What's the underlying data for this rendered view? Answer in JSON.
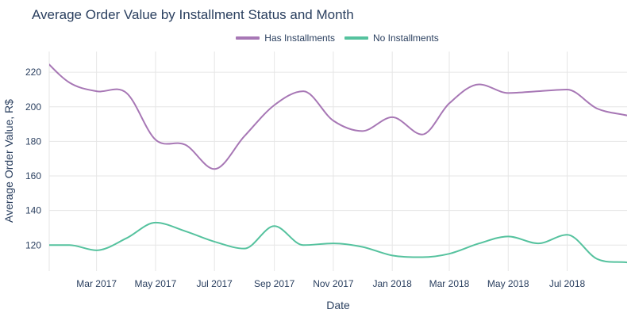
{
  "chart_data": {
    "type": "line",
    "title": "Average Order Value by Installment Status and Month",
    "xlabel": "Date",
    "ylabel": "Average Order Value, R$",
    "x": [
      "2017-01",
      "2017-02",
      "2017-03",
      "2017-04",
      "2017-05",
      "2017-06",
      "2017-07",
      "2017-08",
      "2017-09",
      "2017-10",
      "2017-11",
      "2017-12",
      "2018-01",
      "2018-02",
      "2018-03",
      "2018-04",
      "2018-05",
      "2018-06",
      "2018-07",
      "2018-08",
      "2018-09"
    ],
    "x_ticks": [
      {
        "date": "2017-03",
        "label": "Mar 2017"
      },
      {
        "date": "2017-05",
        "label": "May 2017"
      },
      {
        "date": "2017-07",
        "label": "Jul 2017"
      },
      {
        "date": "2017-09",
        "label": "Sep 2017"
      },
      {
        "date": "2017-11",
        "label": "Nov 2017"
      },
      {
        "date": "2018-01",
        "label": "Jan 2018"
      },
      {
        "date": "2018-03",
        "label": "Mar 2018"
      },
      {
        "date": "2018-05",
        "label": "May 2018"
      },
      {
        "date": "2018-07",
        "label": "Jul 2018"
      }
    ],
    "y_ticks": [
      120,
      140,
      160,
      180,
      200,
      220
    ],
    "xlim": [
      "2017-01-11",
      "2018-09-01"
    ],
    "ylim": [
      105,
      232
    ],
    "grid": true,
    "legend_position": "top-center",
    "series": [
      {
        "name": "Has Installments",
        "color": "#a777b5",
        "values": [
          230,
          214,
          209,
          208,
          181,
          178,
          164,
          183,
          201,
          209,
          192,
          186,
          194,
          184,
          202,
          213,
          208,
          209,
          210,
          199,
          195
        ]
      },
      {
        "name": "No Installments",
        "color": "#55c29e",
        "values": [
          120,
          120,
          117,
          124,
          133,
          128,
          122,
          118,
          131,
          120,
          121,
          119,
          114,
          113,
          115,
          121,
          125,
          121,
          126,
          112,
          110
        ]
      }
    ]
  }
}
